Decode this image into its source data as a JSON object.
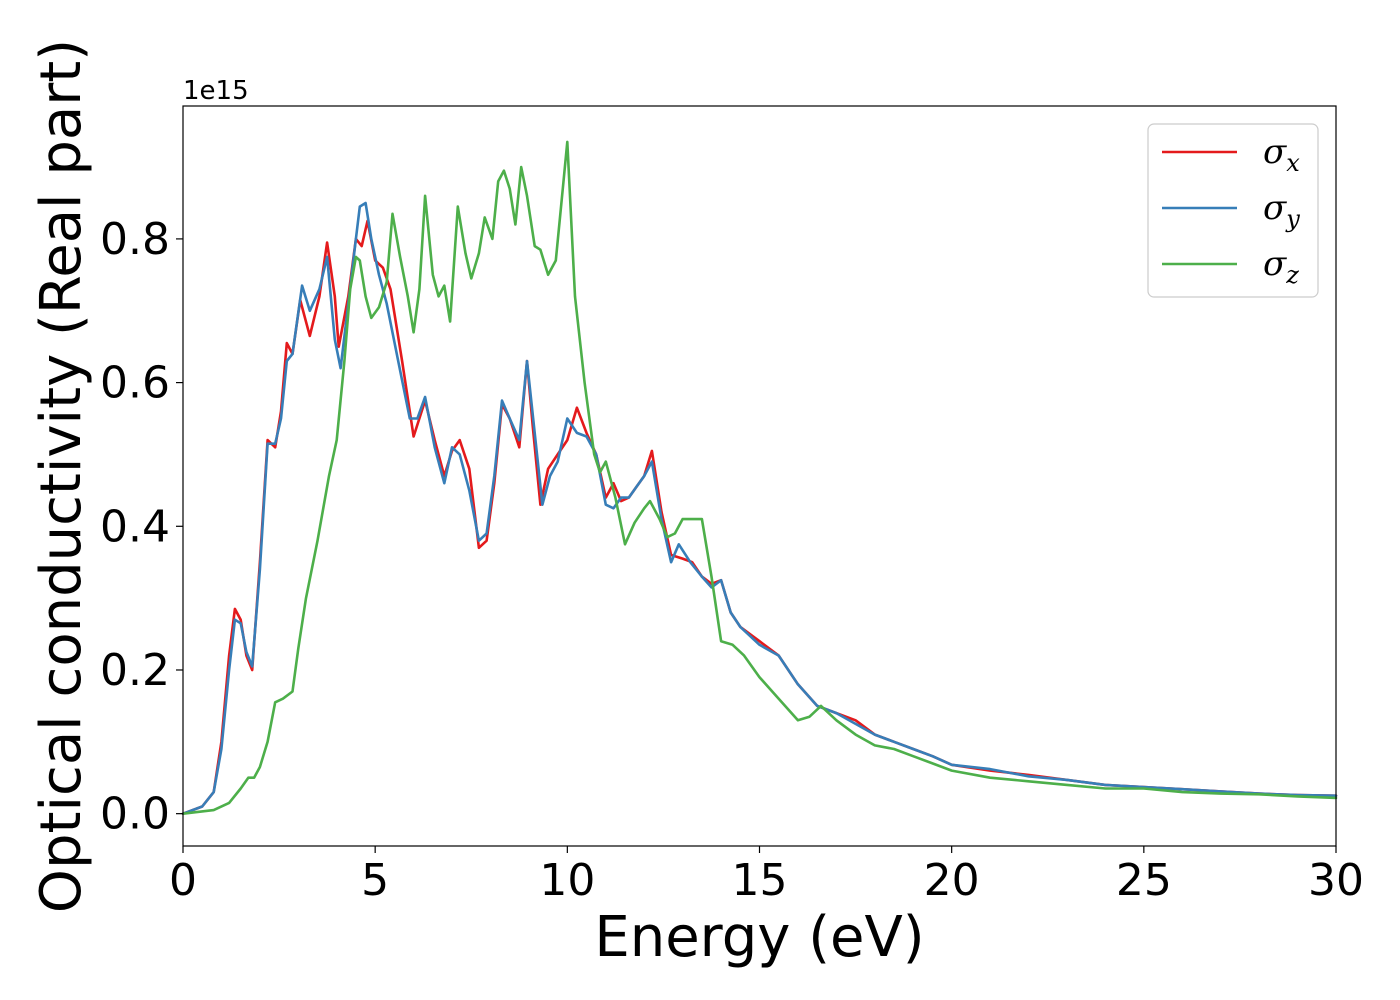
{
  "chart_data": {
    "type": "line",
    "xlabel": "Energy (eV)",
    "ylabel": "Optical conductivity (Real part)",
    "offset_text": "1e15",
    "xlim": [
      0,
      30
    ],
    "ylim": [
      -0.045,
      0.985
    ],
    "y_scale_multiplier": 1000000000000000.0,
    "xticks": [
      0,
      5,
      10,
      15,
      20,
      25,
      30
    ],
    "xtick_labels": [
      "0",
      "5",
      "10",
      "15",
      "20",
      "25",
      "30"
    ],
    "yticks": [
      0.0,
      0.2,
      0.4,
      0.6,
      0.8
    ],
    "ytick_labels": [
      "0.0",
      "0.2",
      "0.4",
      "0.6",
      "0.8"
    ],
    "grid": false,
    "legend_position": "top-right",
    "series": [
      {
        "name": "σx",
        "symbol": "σ",
        "subscript": "x",
        "color": "#e41a1c",
        "x": [
          0,
          0.5,
          0.8,
          1.0,
          1.2,
          1.35,
          1.5,
          1.65,
          1.8,
          2.0,
          2.2,
          2.4,
          2.55,
          2.7,
          2.85,
          3.05,
          3.3,
          3.55,
          3.75,
          3.95,
          4.05,
          4.3,
          4.5,
          4.65,
          4.8,
          5.0,
          5.2,
          5.4,
          5.7,
          6.0,
          6.3,
          6.55,
          6.8,
          7.0,
          7.2,
          7.45,
          7.7,
          7.9,
          8.1,
          8.3,
          8.5,
          8.75,
          8.95,
          9.1,
          9.3,
          9.5,
          9.75,
          10.0,
          10.25,
          10.5,
          10.75,
          11.0,
          11.2,
          11.4,
          11.6,
          11.8,
          12.0,
          12.2,
          12.45,
          12.7,
          13.0,
          13.25,
          13.5,
          13.75,
          14.0,
          14.25,
          14.5,
          15.0,
          15.5,
          16.0,
          16.5,
          17.0,
          17.5,
          18.0,
          18.5,
          19.0,
          19.5,
          20.0,
          21.0,
          22.0,
          23.0,
          24.0,
          25.0,
          26.0,
          27.0,
          28.0,
          29.0,
          30.0
        ],
        "y": [
          0.0,
          0.01,
          0.03,
          0.1,
          0.22,
          0.285,
          0.27,
          0.22,
          0.2,
          0.35,
          0.52,
          0.51,
          0.56,
          0.655,
          0.64,
          0.715,
          0.665,
          0.72,
          0.795,
          0.72,
          0.65,
          0.72,
          0.8,
          0.79,
          0.825,
          0.77,
          0.76,
          0.73,
          0.63,
          0.525,
          0.575,
          0.52,
          0.47,
          0.505,
          0.52,
          0.48,
          0.37,
          0.38,
          0.46,
          0.57,
          0.55,
          0.51,
          0.63,
          0.54,
          0.43,
          0.48,
          0.5,
          0.52,
          0.565,
          0.53,
          0.5,
          0.44,
          0.46,
          0.435,
          0.44,
          0.455,
          0.47,
          0.505,
          0.42,
          0.36,
          0.355,
          0.35,
          0.33,
          0.32,
          0.325,
          0.28,
          0.26,
          0.24,
          0.22,
          0.18,
          0.15,
          0.14,
          0.13,
          0.11,
          0.1,
          0.09,
          0.08,
          0.068,
          0.06,
          0.054,
          0.047,
          0.04,
          0.037,
          0.034,
          0.031,
          0.028,
          0.026,
          0.025
        ]
      },
      {
        "name": "σy",
        "symbol": "σ",
        "subscript": "y",
        "color": "#377eb8",
        "x": [
          0,
          0.5,
          0.8,
          1.0,
          1.2,
          1.35,
          1.5,
          1.65,
          1.8,
          2.0,
          2.2,
          2.4,
          2.55,
          2.7,
          2.85,
          3.1,
          3.3,
          3.55,
          3.75,
          3.95,
          4.1,
          4.3,
          4.5,
          4.6,
          4.75,
          4.9,
          5.1,
          5.3,
          5.6,
          5.9,
          6.1,
          6.3,
          6.55,
          6.8,
          7.0,
          7.2,
          7.45,
          7.7,
          7.9,
          8.1,
          8.3,
          8.5,
          8.75,
          8.95,
          9.15,
          9.35,
          9.55,
          9.75,
          10.0,
          10.25,
          10.5,
          10.75,
          11.0,
          11.2,
          11.4,
          11.6,
          11.8,
          12.0,
          12.2,
          12.45,
          12.7,
          12.9,
          13.2,
          13.5,
          13.75,
          14.0,
          14.25,
          14.5,
          15.0,
          15.5,
          16.0,
          16.5,
          17.0,
          17.5,
          18.0,
          18.5,
          19.0,
          19.5,
          20.0,
          21.0,
          22.0,
          23.0,
          24.0,
          25.0,
          26.0,
          27.0,
          28.0,
          29.0,
          30.0
        ],
        "y": [
          0.0,
          0.01,
          0.03,
          0.09,
          0.2,
          0.27,
          0.265,
          0.225,
          0.205,
          0.34,
          0.515,
          0.515,
          0.55,
          0.63,
          0.64,
          0.735,
          0.7,
          0.73,
          0.775,
          0.66,
          0.62,
          0.71,
          0.8,
          0.845,
          0.85,
          0.8,
          0.75,
          0.71,
          0.63,
          0.55,
          0.55,
          0.58,
          0.51,
          0.46,
          0.51,
          0.5,
          0.45,
          0.38,
          0.39,
          0.47,
          0.575,
          0.55,
          0.52,
          0.63,
          0.53,
          0.43,
          0.47,
          0.49,
          0.55,
          0.53,
          0.525,
          0.5,
          0.43,
          0.425,
          0.44,
          0.44,
          0.455,
          0.47,
          0.49,
          0.41,
          0.35,
          0.375,
          0.35,
          0.33,
          0.315,
          0.325,
          0.28,
          0.26,
          0.235,
          0.22,
          0.18,
          0.15,
          0.14,
          0.125,
          0.11,
          0.1,
          0.09,
          0.08,
          0.068,
          0.062,
          0.052,
          0.047,
          0.04,
          0.037,
          0.034,
          0.031,
          0.028,
          0.026,
          0.025
        ]
      },
      {
        "name": "σz",
        "symbol": "σ",
        "subscript": "z",
        "color": "#4daf4a",
        "x": [
          0,
          0.8,
          1.2,
          1.5,
          1.7,
          1.85,
          2.0,
          2.2,
          2.4,
          2.6,
          2.85,
          3.0,
          3.2,
          3.5,
          3.8,
          4.0,
          4.2,
          4.35,
          4.5,
          4.6,
          4.75,
          4.9,
          5.1,
          5.3,
          5.45,
          5.65,
          5.85,
          6.0,
          6.15,
          6.3,
          6.5,
          6.65,
          6.8,
          6.95,
          7.15,
          7.35,
          7.5,
          7.7,
          7.85,
          8.05,
          8.2,
          8.35,
          8.5,
          8.65,
          8.8,
          8.95,
          9.15,
          9.3,
          9.5,
          9.7,
          9.9,
          10.0,
          10.2,
          10.45,
          10.7,
          10.85,
          11.0,
          11.25,
          11.5,
          11.75,
          12.0,
          12.15,
          12.4,
          12.6,
          12.8,
          13.0,
          13.25,
          13.5,
          13.75,
          14.0,
          14.3,
          14.6,
          15.0,
          15.5,
          16.0,
          16.3,
          16.6,
          17.0,
          17.5,
          18.0,
          18.5,
          19.0,
          19.5,
          20.0,
          21.0,
          22.0,
          23.0,
          24.0,
          25.0,
          26.0,
          27.0,
          28.0,
          29.0,
          30.0
        ],
        "y": [
          0.0,
          0.005,
          0.015,
          0.035,
          0.05,
          0.05,
          0.065,
          0.1,
          0.155,
          0.16,
          0.17,
          0.23,
          0.3,
          0.38,
          0.47,
          0.52,
          0.63,
          0.73,
          0.775,
          0.77,
          0.72,
          0.69,
          0.705,
          0.74,
          0.835,
          0.775,
          0.72,
          0.67,
          0.73,
          0.86,
          0.75,
          0.72,
          0.735,
          0.685,
          0.845,
          0.78,
          0.745,
          0.78,
          0.83,
          0.8,
          0.88,
          0.895,
          0.87,
          0.82,
          0.9,
          0.86,
          0.79,
          0.785,
          0.75,
          0.77,
          0.88,
          0.935,
          0.72,
          0.6,
          0.5,
          0.475,
          0.49,
          0.44,
          0.375,
          0.405,
          0.425,
          0.435,
          0.41,
          0.385,
          0.39,
          0.41,
          0.41,
          0.41,
          0.33,
          0.24,
          0.235,
          0.22,
          0.19,
          0.16,
          0.13,
          0.135,
          0.15,
          0.13,
          0.11,
          0.095,
          0.09,
          0.08,
          0.07,
          0.06,
          0.05,
          0.045,
          0.04,
          0.035,
          0.035,
          0.03,
          0.028,
          0.027,
          0.024,
          0.022
        ]
      }
    ]
  }
}
